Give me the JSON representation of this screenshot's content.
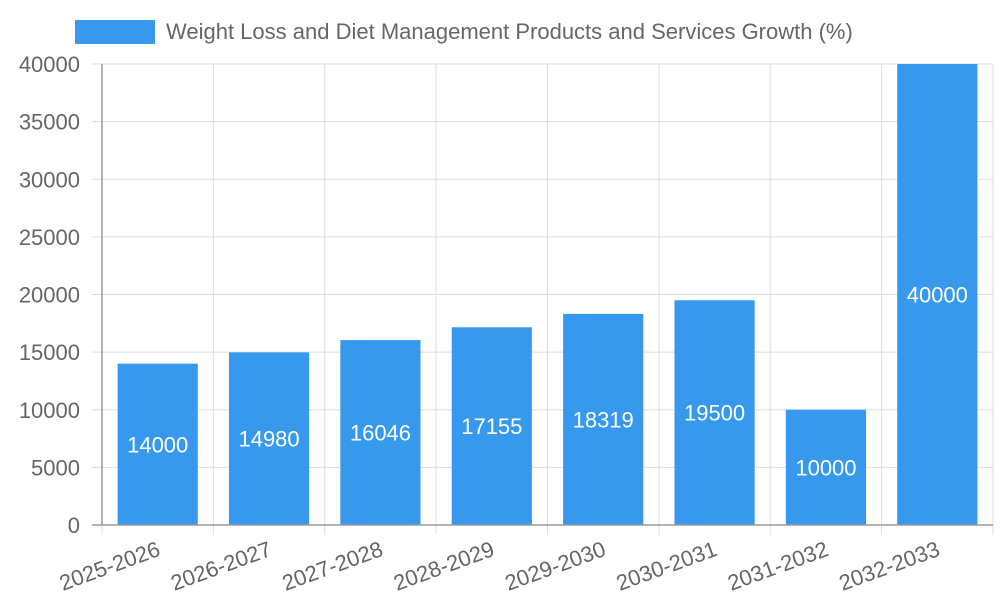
{
  "chart_data": {
    "type": "bar",
    "categories": [
      "2025-2026",
      "2026-2027",
      "2027-2028",
      "2028-2029",
      "2029-2030",
      "2030-2031",
      "2031-2032",
      "2032-2033"
    ],
    "series": [
      {
        "name": "Weight Loss and Diet Management Products and Services Growth (%)",
        "values": [
          14000,
          14980,
          16046,
          17155,
          18319,
          19500,
          10000,
          40000
        ]
      }
    ],
    "ylim": [
      0,
      40000
    ],
    "yticks": [
      0,
      5000,
      10000,
      15000,
      20000,
      25000,
      30000,
      35000,
      40000
    ],
    "grid": true,
    "legend_position": "top",
    "data_labels": true,
    "colors": {
      "bar": "#3699ee",
      "grid": "#dddddd",
      "axis": "#999999",
      "tick_text": "#666666",
      "label_text": "#ffffff",
      "legend_text": "#666666"
    }
  }
}
